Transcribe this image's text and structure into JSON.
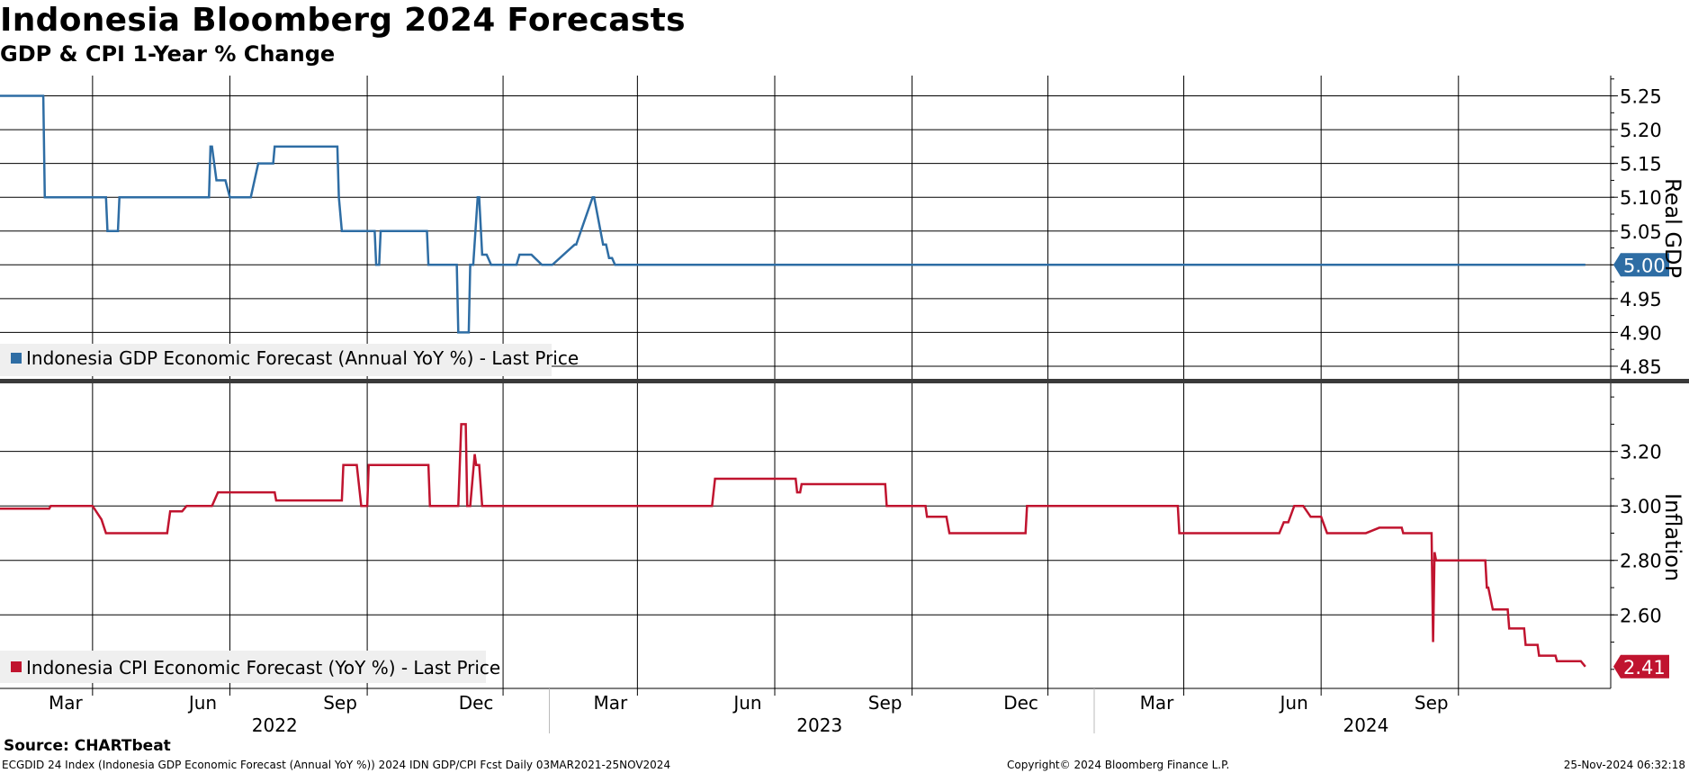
{
  "title": "Indonesia Bloomberg 2024 Forecasts",
  "subtitle": "GDP & CPI 1-Year % Change",
  "source": "Source: CHARTbeat",
  "footer": {
    "left": "ECGDID 24 Index (Indonesia GDP Economic Forecast (Annual YoY %)) 2024 IDN GDP/CPI Fcst  Daily 03MAR2021-25NOV2024",
    "center": "Copyright© 2024 Bloomberg Finance L.P.",
    "right": "25-Nov-2024 06:32:18"
  },
  "colors": {
    "gdp": "#2e6da4",
    "cpi": "#c0142f",
    "grid": "#000000",
    "legend_bg": "#efefef"
  },
  "chart_data": [
    {
      "type": "line",
      "panel": "top",
      "ylabel": "Real GDP",
      "ylim": [
        4.83,
        5.28
      ],
      "yticks": [
        "5.25",
        "5.20",
        "5.15",
        "5.10",
        "5.05",
        "5.00",
        "4.95",
        "4.90",
        "4.85"
      ],
      "legend": "Indonesia GDP Economic Forecast (Annual YoY %) - Last Price",
      "last_value": "5.00",
      "series": [
        {
          "name": "Indonesia GDP Economic Forecast (Annual YoY %) - Last Price",
          "x": [
            "2021-12-29",
            "2022-01-27",
            "2022-01-28",
            "2022-03-10",
            "2022-03-11",
            "2022-03-18",
            "2022-03-19",
            "2022-05-18",
            "2022-05-19",
            "2022-05-20",
            "2022-05-23",
            "2022-05-24",
            "2022-05-29",
            "2022-06-01",
            "2022-06-08",
            "2022-06-15",
            "2022-06-20",
            "2022-06-25",
            "2022-06-30",
            "2022-07-01",
            "2022-08-12",
            "2022-08-13",
            "2022-08-15",
            "2022-08-16",
            "2022-08-19",
            "2022-08-20",
            "2022-09-06",
            "2022-09-07",
            "2022-09-09",
            "2022-09-10",
            "2022-10-11",
            "2022-10-12",
            "2022-10-31",
            "2022-11-01",
            "2022-11-08",
            "2022-11-09",
            "2022-11-11",
            "2022-11-14",
            "2022-11-15",
            "2022-11-17",
            "2022-11-20",
            "2022-11-23",
            "2022-11-30",
            "2022-12-10",
            "2022-12-12",
            "2022-12-20",
            "2022-12-27",
            "2022-12-30",
            "2023-01-03",
            "2023-01-18",
            "2023-01-19",
            "2023-01-30",
            "2023-01-31",
            "2023-02-06",
            "2023-02-08",
            "2023-02-10",
            "2023-02-12",
            "2023-02-14",
            "2023-02-15",
            "2024-11-25"
          ],
          "y": [
            5.25,
            5.25,
            5.1,
            5.1,
            5.05,
            5.05,
            5.1,
            5.1,
            5.175,
            5.175,
            5.125,
            5.125,
            5.125,
            5.1,
            5.1,
            5.1,
            5.15,
            5.15,
            5.15,
            5.175,
            5.175,
            5.1,
            5.05,
            5.05,
            5.05,
            5.05,
            5.05,
            5.0,
            5.0,
            5.05,
            5.05,
            5.0,
            5.0,
            4.9,
            4.9,
            5.0,
            5.0,
            5.1,
            5.1,
            5.015,
            5.015,
            5.0,
            5.0,
            5.0,
            5.015,
            5.015,
            5.0,
            5.0,
            5.0,
            5.03,
            5.03,
            5.1,
            5.1,
            5.03,
            5.03,
            5.01,
            5.01,
            5.0,
            5.0,
            5.0
          ]
        }
      ]
    },
    {
      "type": "line",
      "panel": "bottom",
      "ylabel": "Inflation",
      "ylim": [
        2.33,
        3.45
      ],
      "yticks": [
        "3.20",
        "3.00",
        "2.80",
        "2.60"
      ],
      "legend": "Indonesia CPI Economic Forecast (YoY %) - Last Price",
      "last_value": "2.41",
      "series": [
        {
          "name": "Indonesia CPI Economic Forecast (YoY %) - Last Price",
          "x": [
            "2021-12-29",
            "2022-01-31",
            "2022-02-01",
            "2022-02-28",
            "2022-03-01",
            "2022-03-07",
            "2022-03-10",
            "2022-04-20",
            "2022-04-22",
            "2022-04-30",
            "2022-05-03",
            "2022-05-20",
            "2022-05-24",
            "2022-06-10",
            "2022-07-01",
            "2022-07-02",
            "2022-08-15",
            "2022-08-16",
            "2022-08-25",
            "2022-08-28",
            "2022-09-01",
            "2022-09-02",
            "2022-10-12",
            "2022-10-13",
            "2022-11-01",
            "2022-11-03",
            "2022-11-06",
            "2022-11-07",
            "2022-11-09",
            "2022-11-12",
            "2022-11-13",
            "2022-11-15",
            "2022-11-17",
            "2022-11-20",
            "2023-04-20",
            "2023-04-22",
            "2023-06-15",
            "2023-06-16",
            "2023-06-18",
            "2023-06-19",
            "2023-08-14",
            "2023-08-15",
            "2023-09-10",
            "2023-09-11",
            "2023-09-24",
            "2023-09-26",
            "2023-11-16",
            "2023-11-17",
            "2024-02-26",
            "2024-02-27",
            "2024-05-04",
            "2024-05-07",
            "2024-05-10",
            "2024-05-14",
            "2024-05-20",
            "2024-05-25",
            "2024-06-01",
            "2024-06-05",
            "2024-07-01",
            "2024-07-10",
            "2024-07-25",
            "2024-07-26",
            "2024-08-14",
            "2024-08-15",
            "2024-08-16",
            "2024-08-17",
            "2024-08-21",
            "2024-08-22",
            "2024-09-19",
            "2024-09-20",
            "2024-09-21",
            "2024-09-24",
            "2024-09-25",
            "2024-10-04",
            "2024-10-05",
            "2024-10-15",
            "2024-10-16",
            "2024-10-24",
            "2024-10-25",
            "2024-11-05",
            "2024-11-06",
            "2024-11-22",
            "2024-11-25"
          ],
          "y": [
            2.99,
            2.99,
            3.0,
            3.0,
            3.0,
            2.95,
            2.9,
            2.9,
            2.98,
            2.98,
            3.0,
            3.0,
            3.05,
            3.05,
            3.05,
            3.02,
            3.02,
            3.15,
            3.15,
            3.0,
            3.0,
            3.15,
            3.15,
            3.0,
            3.0,
            3.3,
            3.3,
            3.0,
            3.0,
            3.19,
            3.15,
            3.15,
            3.0,
            3.0,
            3.0,
            3.1,
            3.1,
            3.05,
            3.05,
            3.08,
            3.08,
            3.0,
            3.0,
            2.96,
            2.96,
            2.9,
            2.9,
            3.0,
            3.0,
            2.9,
            2.9,
            2.94,
            2.94,
            3.0,
            3.0,
            2.96,
            2.96,
            2.9,
            2.9,
            2.92,
            2.92,
            2.9,
            2.9,
            2.5,
            2.83,
            2.8,
            2.8,
            2.8,
            2.8,
            2.7,
            2.7,
            2.62,
            2.62,
            2.62,
            2.55,
            2.55,
            2.49,
            2.49,
            2.45,
            2.45,
            2.43,
            2.43,
            2.41
          ]
        }
      ]
    }
  ],
  "x_axis": {
    "range": [
      "2021-12-29",
      "2024-12-12"
    ],
    "months": [
      {
        "label": "Mar",
        "date": "2022-03-01"
      },
      {
        "label": "Jun",
        "date": "2022-06-01"
      },
      {
        "label": "Sep",
        "date": "2022-09-01"
      },
      {
        "label": "Dec",
        "date": "2022-12-01"
      },
      {
        "label": "Mar",
        "date": "2023-03-01"
      },
      {
        "label": "Jun",
        "date": "2023-06-01"
      },
      {
        "label": "Sep",
        "date": "2023-09-01"
      },
      {
        "label": "Dec",
        "date": "2023-12-01"
      },
      {
        "label": "Mar",
        "date": "2024-03-01"
      },
      {
        "label": "Jun",
        "date": "2024-06-01"
      },
      {
        "label": "Sep",
        "date": "2024-09-01"
      }
    ],
    "years": [
      {
        "label": "2022",
        "date": "2022-07-01"
      },
      {
        "label": "2023",
        "date": "2023-07-01"
      },
      {
        "label": "2024",
        "date": "2024-07-01"
      }
    ],
    "year_boundaries": [
      "2023-01-01",
      "2024-01-01"
    ]
  }
}
